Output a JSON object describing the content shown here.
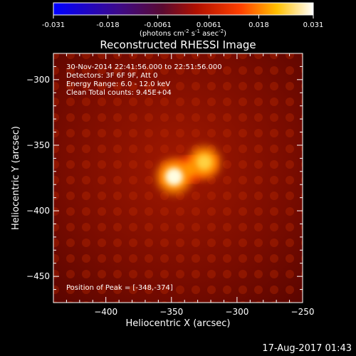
{
  "chart_data": {
    "type": "heatmap",
    "title": "Reconstructed RHESSI Image",
    "xlabel": "Heliocentric X (arcsec)",
    "ylabel": "Heliocentric Y (arcsec)",
    "xlim": [
      -440,
      -250
    ],
    "ylim": [
      -470,
      -280
    ],
    "xticks": [
      -400,
      -350,
      -300,
      -250
    ],
    "yticks": [
      -300,
      -350,
      -400,
      -450
    ],
    "colorbar": {
      "min": -0.031,
      "max": 0.031,
      "ticks": [
        "-0.031",
        "-0.018",
        "-0.0061",
        "0.0061",
        "0.018",
        "0.031"
      ],
      "unit_label": "(photons cm",
      "unit_sup1": "-2",
      "unit_mid": " s",
      "unit_sup2": "-1",
      "unit_mid2": " asec",
      "unit_sup3": "-2",
      "unit_end": ")",
      "colormap": "heat"
    },
    "info_lines": [
      "30-Nov-2014 22:41:56.000 to 22:51:56.000",
      "Detectors: 3F 6F 9F, Att 0",
      "Energy Range: 6.0 - 12.0 keV",
      "Clean    Total counts: 9.45E+04"
    ],
    "peak_text": "Position of Peak = [-348,-374]",
    "sources": [
      {
        "x": -348,
        "y": -374,
        "peak": 0.031
      },
      {
        "x": -325,
        "y": -363,
        "peak": 0.024
      }
    ],
    "background_level": 0.0055
  },
  "footer": "17-Aug-2017 01:43"
}
